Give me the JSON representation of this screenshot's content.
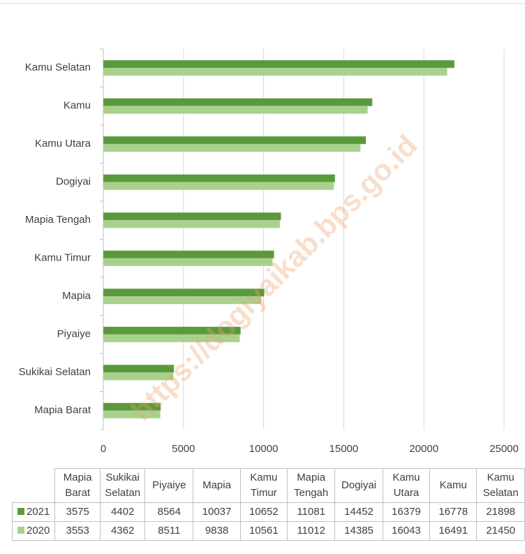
{
  "chart_data": {
    "type": "bar",
    "orientation": "horizontal",
    "categories": [
      "Mapia Barat",
      "Sukikai Selatan",
      "Piyaiye",
      "Mapia",
      "Kamu Timur",
      "Mapia Tengah",
      "Dogiyai",
      "Kamu Utara",
      "Kamu",
      "Kamu Selatan"
    ],
    "series": [
      {
        "name": "2021",
        "color": "#5b9a3c",
        "values": [
          3575,
          4402,
          8564,
          10037,
          10652,
          11081,
          14452,
          16379,
          16778,
          21898
        ]
      },
      {
        "name": "2020",
        "color": "#a9d18e",
        "values": [
          3553,
          4362,
          8511,
          9838,
          10561,
          11012,
          14385,
          16043,
          16491,
          21450
        ]
      }
    ],
    "xlim": [
      0,
      25000
    ],
    "xticks": [
      0,
      5000,
      10000,
      15000,
      20000,
      25000
    ],
    "grid": true,
    "watermark": "https://dogiyaikab.bps.go.id"
  }
}
